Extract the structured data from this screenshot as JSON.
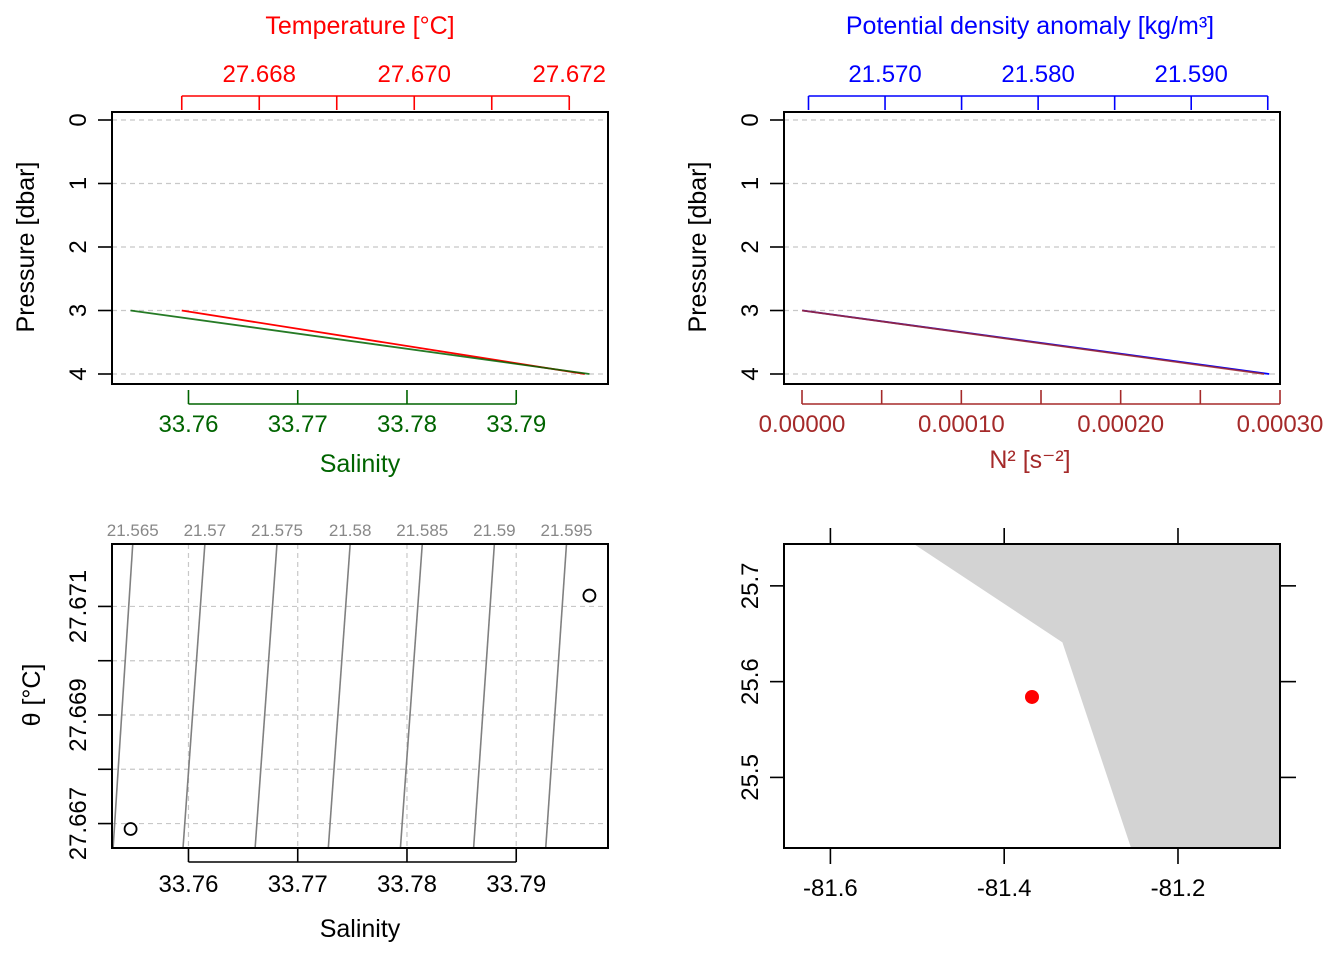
{
  "colors": {
    "temperature": "#ff0000",
    "salinity": "#006400",
    "density": "#0000ff",
    "n2": "#a52a2a",
    "isopycnal": "#808080",
    "land": "#d3d3d3",
    "station": "#ff0000"
  },
  "chart_data": [
    {
      "panel": "profile-TS",
      "type": "line",
      "top_axis": {
        "label": "Temperature [°C]",
        "ticks": [
          27.667,
          27.668,
          27.669,
          27.67,
          27.671,
          27.672
        ],
        "tick_labels": [
          "27.668",
          "27.670",
          "27.672"
        ],
        "tick_label_values": [
          27.668,
          27.67,
          27.672
        ],
        "lim": [
          27.6661,
          27.6725
        ]
      },
      "bottom_axis": {
        "label": "Salinity",
        "ticks": [
          33.76,
          33.77,
          33.78,
          33.79
        ],
        "tick_labels": [
          "33.76",
          "33.77",
          "33.78",
          "33.79"
        ],
        "lim": [
          33.753,
          33.7984
        ]
      },
      "left_axis": {
        "label": "Pressure [dbar]",
        "ticks": [
          0,
          1,
          2,
          3,
          4
        ],
        "tick_labels": [
          "0",
          "1",
          "2",
          "3",
          "4"
        ],
        "lim": [
          4.0,
          0.0
        ]
      },
      "series": [
        {
          "name": "Temperature",
          "x": [
            27.667,
            27.6722
          ],
          "y": [
            3,
            4
          ]
        },
        {
          "name": "Salinity",
          "x": [
            33.7547,
            33.7967
          ],
          "y": [
            3,
            4
          ]
        }
      ],
      "grid": true
    },
    {
      "panel": "profile-density-N2",
      "type": "line",
      "top_axis": {
        "label": "Potential density anomaly [kg/m³]",
        "ticks": [
          21.565,
          21.57,
          21.575,
          21.58,
          21.585,
          21.59,
          21.595
        ],
        "tick_labels": [
          "21.570",
          "21.580",
          "21.590"
        ],
        "tick_label_values": [
          21.57,
          21.58,
          21.59
        ],
        "lim": [
          21.5634,
          21.5958
        ]
      },
      "bottom_axis": {
        "label": "N² [s⁻²]",
        "ticks": [
          0.0,
          5e-05,
          0.0001,
          0.00015,
          0.0002,
          0.00025,
          0.0003
        ],
        "tick_labels": [
          "0.00000",
          "0.00010",
          "0.00020",
          "0.00030"
        ],
        "tick_label_values": [
          0.0,
          0.0001,
          0.0002,
          0.0003
        ],
        "lim": [
          -1.13e-05,
          0.0003
        ]
      },
      "left_axis": {
        "label": "Pressure [dbar]",
        "ticks": [
          0,
          1,
          2,
          3,
          4
        ],
        "tick_labels": [
          "0",
          "1",
          "2",
          "3",
          "4"
        ],
        "lim": [
          4.0,
          0.0
        ]
      },
      "series": [
        {
          "name": "Potential density anomaly",
          "x": [
            21.5646,
            21.5951
          ],
          "y": [
            3,
            4
          ]
        },
        {
          "name": "N2",
          "x": [
            0.0,
            0.00029
          ],
          "y": [
            3,
            4
          ]
        }
      ],
      "grid": true
    },
    {
      "panel": "TS-diagram",
      "type": "scatter",
      "xlabel": "Salinity",
      "ylabel": "θ [°C]",
      "xlim": [
        33.753,
        33.7984
      ],
      "ylim": [
        27.66655,
        27.67215
      ],
      "x_ticks": [
        33.76,
        33.77,
        33.78,
        33.79
      ],
      "x_tick_labels": [
        "33.76",
        "33.77",
        "33.78",
        "33.79"
      ],
      "y_ticks": [
        27.667,
        27.669,
        27.671
      ],
      "y_tick_labels": [
        "27.667",
        "27.669",
        "27.671"
      ],
      "points": [
        {
          "x": 33.7547,
          "y": 27.6669
        },
        {
          "x": 33.7967,
          "y": 27.6712
        }
      ],
      "isopycnals": [
        {
          "label": "21.565",
          "s_top": 33.7549,
          "s_bottom": 33.7531
        },
        {
          "label": "21.57",
          "s_top": 33.7615,
          "s_bottom": 33.7595
        },
        {
          "label": "21.575",
          "s_top": 33.7681,
          "s_bottom": 33.7661
        },
        {
          "label": "21.58",
          "s_top": 33.7748,
          "s_bottom": 33.7728
        },
        {
          "label": "21.585",
          "s_top": 33.7814,
          "s_bottom": 33.7794
        },
        {
          "label": "21.59",
          "s_top": 33.788,
          "s_bottom": 33.7861
        },
        {
          "label": "21.595",
          "s_top": 33.7946,
          "s_bottom": 33.7927
        }
      ],
      "grid": true
    },
    {
      "panel": "station-map",
      "type": "scatter",
      "xlim": [
        -81.6534,
        -81.0826
      ],
      "ylim": [
        25.4263,
        25.7437
      ],
      "x_ticks": [
        -81.6,
        -81.4,
        -81.2
      ],
      "x_tick_labels": [
        "-81.6",
        "-81.4",
        "-81.2"
      ],
      "y_ticks": [
        25.5,
        25.6,
        25.7
      ],
      "y_tick_labels": [
        "25.5",
        "25.6",
        "25.7"
      ],
      "land_polygon": [
        {
          "lon": -81.504,
          "lat": 25.7437
        },
        {
          "lon": -81.333,
          "lat": 25.641
        },
        {
          "lon": -81.254,
          "lat": 25.4263
        },
        {
          "lon": -81.0826,
          "lat": 25.4263
        },
        {
          "lon": -81.0826,
          "lat": 25.7437
        }
      ],
      "station": {
        "lon": -81.368,
        "lat": 25.584
      }
    }
  ]
}
